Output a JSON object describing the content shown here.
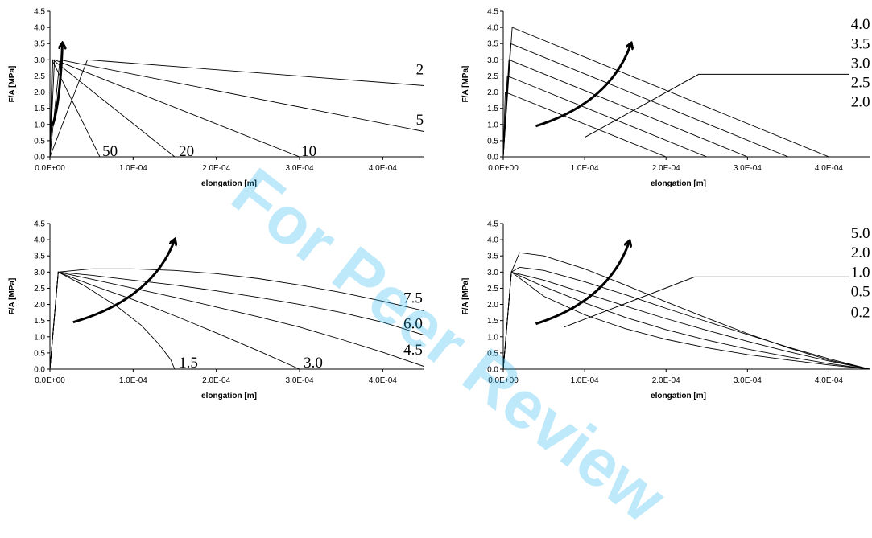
{
  "watermark": {
    "text": "For Peer Review",
    "color": "#1ab2f0"
  },
  "chart_data": [
    {
      "type": "line",
      "xlabel": "elongation [m]",
      "ylabel": "F/A [MPa]",
      "xlim": [
        0,
        0.00045
      ],
      "ylim": [
        0,
        4.5
      ],
      "x_ticks": [
        "0.0E+00",
        "1.0E-04",
        "2.0E-04",
        "3.0E-04",
        "4.0E-04"
      ],
      "y_ticks": [
        "0.0",
        "0.5",
        "1.0",
        "1.5",
        "2.0",
        "2.5",
        "3.0",
        "3.5",
        "4.0",
        "4.5"
      ],
      "grid": false,
      "arrow": {
        "from": [
          3e-06,
          0.95
        ],
        "to": [
          1.5e-05,
          3.5
        ]
      },
      "series": [
        {
          "name": "50",
          "label": "50",
          "x": [
            0,
            2.5e-06,
            6e-05
          ],
          "y": [
            0,
            3.0,
            0
          ]
        },
        {
          "name": "20",
          "label": "20",
          "x": [
            0,
            3.5e-06,
            0.00015
          ],
          "y": [
            0,
            3.0,
            0
          ]
        },
        {
          "name": "10",
          "label": "10",
          "x": [
            0,
            5.5e-06,
            0.0003
          ],
          "y": [
            0,
            3.0,
            0
          ]
        },
        {
          "name": "5",
          "label": "5",
          "x": [
            0,
            1.2e-05,
            0.00045
          ],
          "y": [
            0,
            3.0,
            0.78
          ]
        },
        {
          "name": "2",
          "label": "2",
          "x": [
            0,
            4.5e-05,
            0.00045
          ],
          "y": [
            0,
            3.0,
            2.2
          ]
        }
      ],
      "labels": [
        {
          "text": "50",
          "x": 6.3e-05,
          "y": 0.02
        },
        {
          "text": "20",
          "x": 0.000155,
          "y": 0.02
        },
        {
          "text": "10",
          "x": 0.000302,
          "y": 0.02
        },
        {
          "text": "5",
          "x": 0.00044,
          "y": 1.0
        },
        {
          "text": "2",
          "x": 0.00044,
          "y": 2.55
        }
      ]
    },
    {
      "type": "line",
      "xlabel": "elongation [m]",
      "ylabel": "F/A [MPa]",
      "xlim": [
        0,
        0.00045
      ],
      "ylim": [
        0,
        4.5
      ],
      "x_ticks": [
        "0.0E+00",
        "1.0E-04",
        "2.0E-04",
        "3.0E-04",
        "4.0E-04"
      ],
      "y_ticks": [
        "0.0",
        "0.5",
        "1.0",
        "1.5",
        "2.0",
        "2.5",
        "3.0",
        "3.5",
        "4.0",
        "4.5"
      ],
      "grid": false,
      "arrow": {
        "from": [
          4e-05,
          0.95
        ],
        "to": [
          0.000157,
          3.5
        ]
      },
      "leader_line": [
        [
          0.0001,
          0.6
        ],
        [
          0.00024,
          2.55
        ],
        [
          0.000425,
          2.55
        ]
      ],
      "series": [
        {
          "name": "2.0",
          "label": "2.0",
          "x": [
            0,
            2.5e-06,
            0.0002
          ],
          "y": [
            0,
            2.0,
            0
          ]
        },
        {
          "name": "2.5",
          "label": "2.5",
          "x": [
            0,
            5e-06,
            0.00025
          ],
          "y": [
            0,
            2.5,
            0
          ]
        },
        {
          "name": "3.0",
          "label": "3.0",
          "x": [
            0,
            7e-06,
            0.0003
          ],
          "y": [
            0,
            3.0,
            0
          ]
        },
        {
          "name": "3.5",
          "label": "3.5",
          "x": [
            0,
            9e-06,
            0.00035
          ],
          "y": [
            0,
            3.5,
            0
          ]
        },
        {
          "name": "4.0",
          "label": "4.0",
          "x": [
            0,
            1.1e-05,
            0.0004
          ],
          "y": [
            0,
            4.0,
            0
          ]
        }
      ],
      "labels": [
        {
          "text": "4.0",
          "x": 0.000427,
          "y": 3.95
        },
        {
          "text": "3.5",
          "x": 0.000427,
          "y": 3.35
        },
        {
          "text": "3.0",
          "x": 0.000427,
          "y": 2.75
        },
        {
          "text": "2.5",
          "x": 0.000427,
          "y": 2.15
        },
        {
          "text": "2.0",
          "x": 0.000427,
          "y": 1.55
        }
      ]
    },
    {
      "type": "line",
      "xlabel": "elongation [m]",
      "ylabel": "F/A [MPa]",
      "xlim": [
        0,
        0.00045
      ],
      "ylim": [
        0,
        4.5
      ],
      "x_ticks": [
        "0.0E+00",
        "1.0E-04",
        "2.0E-04",
        "3.0E-04",
        "4.0E-04"
      ],
      "y_ticks": [
        "0.0",
        "0.5",
        "1.0",
        "1.5",
        "2.0",
        "2.5",
        "3.0",
        "3.5",
        "4.0",
        "4.5"
      ],
      "grid": false,
      "arrow": {
        "from": [
          2.8e-05,
          1.45
        ],
        "to": [
          0.00015,
          4.0
        ]
      },
      "series": [
        {
          "name": "1.5",
          "label": "1.5",
          "x": [
            0,
            1e-05,
            4e-05,
            8e-05,
            0.00011,
            0.00013,
            0.000145,
            0.00015
          ],
          "y": [
            0,
            3.0,
            2.6,
            1.95,
            1.35,
            0.8,
            0.3,
            0
          ]
        },
        {
          "name": "3.0",
          "label": "3.0",
          "x": [
            0,
            1e-05,
            5e-05,
            0.0001,
            0.00015,
            0.0002,
            0.00025,
            0.0003
          ],
          "y": [
            0,
            3.0,
            2.6,
            2.15,
            1.65,
            1.12,
            0.57,
            0
          ]
        },
        {
          "name": "4.5",
          "label": "4.5",
          "x": [
            0,
            1e-05,
            5e-05,
            0.0001,
            0.00015,
            0.0002,
            0.00025,
            0.0003,
            0.00035,
            0.0004,
            0.00045
          ],
          "y": [
            0,
            3.0,
            2.78,
            2.5,
            2.22,
            1.92,
            1.62,
            1.3,
            0.92,
            0.52,
            0.08
          ]
        },
        {
          "name": "6.0",
          "label": "6.0",
          "x": [
            0,
            1e-05,
            5e-05,
            0.0001,
            0.00015,
            0.0002,
            0.00025,
            0.0003,
            0.00035,
            0.0004,
            0.00045
          ],
          "y": [
            0,
            3.0,
            2.9,
            2.75,
            2.6,
            2.42,
            2.22,
            2.0,
            1.75,
            1.45,
            1.05
          ]
        },
        {
          "name": "7.5",
          "label": "7.5",
          "x": [
            0,
            1e-05,
            5e-05,
            0.0001,
            0.00015,
            0.0002,
            0.00025,
            0.0003,
            0.00035,
            0.0004,
            0.00045
          ],
          "y": [
            0,
            3.0,
            3.1,
            3.1,
            3.05,
            2.95,
            2.8,
            2.6,
            2.37,
            2.1,
            1.8
          ]
        }
      ],
      "labels": [
        {
          "text": "1.5",
          "x": 0.000155,
          "y": 0.05
        },
        {
          "text": "3.0",
          "x": 0.000305,
          "y": 0.05
        },
        {
          "text": "4.5",
          "x": 0.000425,
          "y": 0.45
        },
        {
          "text": "6.0",
          "x": 0.000425,
          "y": 1.25
        },
        {
          "text": "7.5",
          "x": 0.000425,
          "y": 2.05
        }
      ]
    },
    {
      "type": "line",
      "xlabel": "elongation [m]",
      "ylabel": "F/A [MPa]",
      "xlim": [
        0,
        0.00045
      ],
      "ylim": [
        0,
        4.5
      ],
      "x_ticks": [
        "0.0E+00",
        "1.0E-04",
        "2.0E-04",
        "3.0E-04",
        "4.0E-04"
      ],
      "y_ticks": [
        "0.0",
        "0.5",
        "1.0",
        "1.5",
        "2.0",
        "2.5",
        "3.0",
        "3.5",
        "4.0",
        "4.5"
      ],
      "grid": false,
      "arrow": {
        "from": [
          4e-05,
          1.4
        ],
        "to": [
          0.000155,
          3.95
        ]
      },
      "leader_line": [
        [
          7.5e-05,
          1.3
        ],
        [
          0.000235,
          2.85
        ],
        [
          0.000425,
          2.85
        ]
      ],
      "series": [
        {
          "name": "0.2",
          "label": "0.2",
          "x": [
            0,
            1e-05,
            5e-05,
            0.0001,
            0.00015,
            0.0002,
            0.00025,
            0.0003,
            0.00035,
            0.0004,
            0.00045
          ],
          "y": [
            0,
            3.0,
            2.25,
            1.68,
            1.25,
            0.92,
            0.66,
            0.45,
            0.28,
            0.13,
            0
          ]
        },
        {
          "name": "0.5",
          "label": "0.5",
          "x": [
            0,
            1e-05,
            5e-05,
            0.0001,
            0.00015,
            0.0002,
            0.00025,
            0.0003,
            0.00035,
            0.0004,
            0.00045
          ],
          "y": [
            0,
            3.0,
            2.55,
            2.05,
            1.6,
            1.22,
            0.9,
            0.62,
            0.38,
            0.17,
            0
          ]
        },
        {
          "name": "1.0",
          "label": "1.0",
          "x": [
            0,
            1e-05,
            5e-05,
            0.0001,
            0.00015,
            0.0002,
            0.00025,
            0.0003,
            0.00035,
            0.0004,
            0.00045
          ],
          "y": [
            0,
            3.0,
            2.75,
            2.35,
            1.95,
            1.56,
            1.2,
            0.86,
            0.54,
            0.25,
            0
          ]
        },
        {
          "name": "2.0",
          "label": "2.0",
          "x": [
            0,
            1e-05,
            2e-05,
            5e-05,
            0.0001,
            0.00015,
            0.0002,
            0.00025,
            0.0003,
            0.00035,
            0.0004,
            0.00045
          ],
          "y": [
            0,
            3.0,
            3.15,
            3.05,
            2.7,
            2.3,
            1.88,
            1.47,
            1.07,
            0.68,
            0.32,
            0
          ]
        },
        {
          "name": "5.0",
          "label": "5.0",
          "x": [
            0,
            1e-05,
            2e-05,
            5e-05,
            0.0001,
            0.00015,
            0.0002,
            0.00025,
            0.0003,
            0.00035,
            0.0004,
            0.00045
          ],
          "y": [
            0,
            3.0,
            3.6,
            3.5,
            3.1,
            2.6,
            2.08,
            1.58,
            1.1,
            0.66,
            0.28,
            0
          ]
        }
      ],
      "labels": [
        {
          "text": "5.0",
          "x": 0.000427,
          "y": 4.05
        },
        {
          "text": "2.0",
          "x": 0.000427,
          "y": 3.45
        },
        {
          "text": "1.0",
          "x": 0.000427,
          "y": 2.85
        },
        {
          "text": "0.5",
          "x": 0.000427,
          "y": 2.25
        },
        {
          "text": "0.2",
          "x": 0.000427,
          "y": 1.6
        }
      ]
    }
  ]
}
